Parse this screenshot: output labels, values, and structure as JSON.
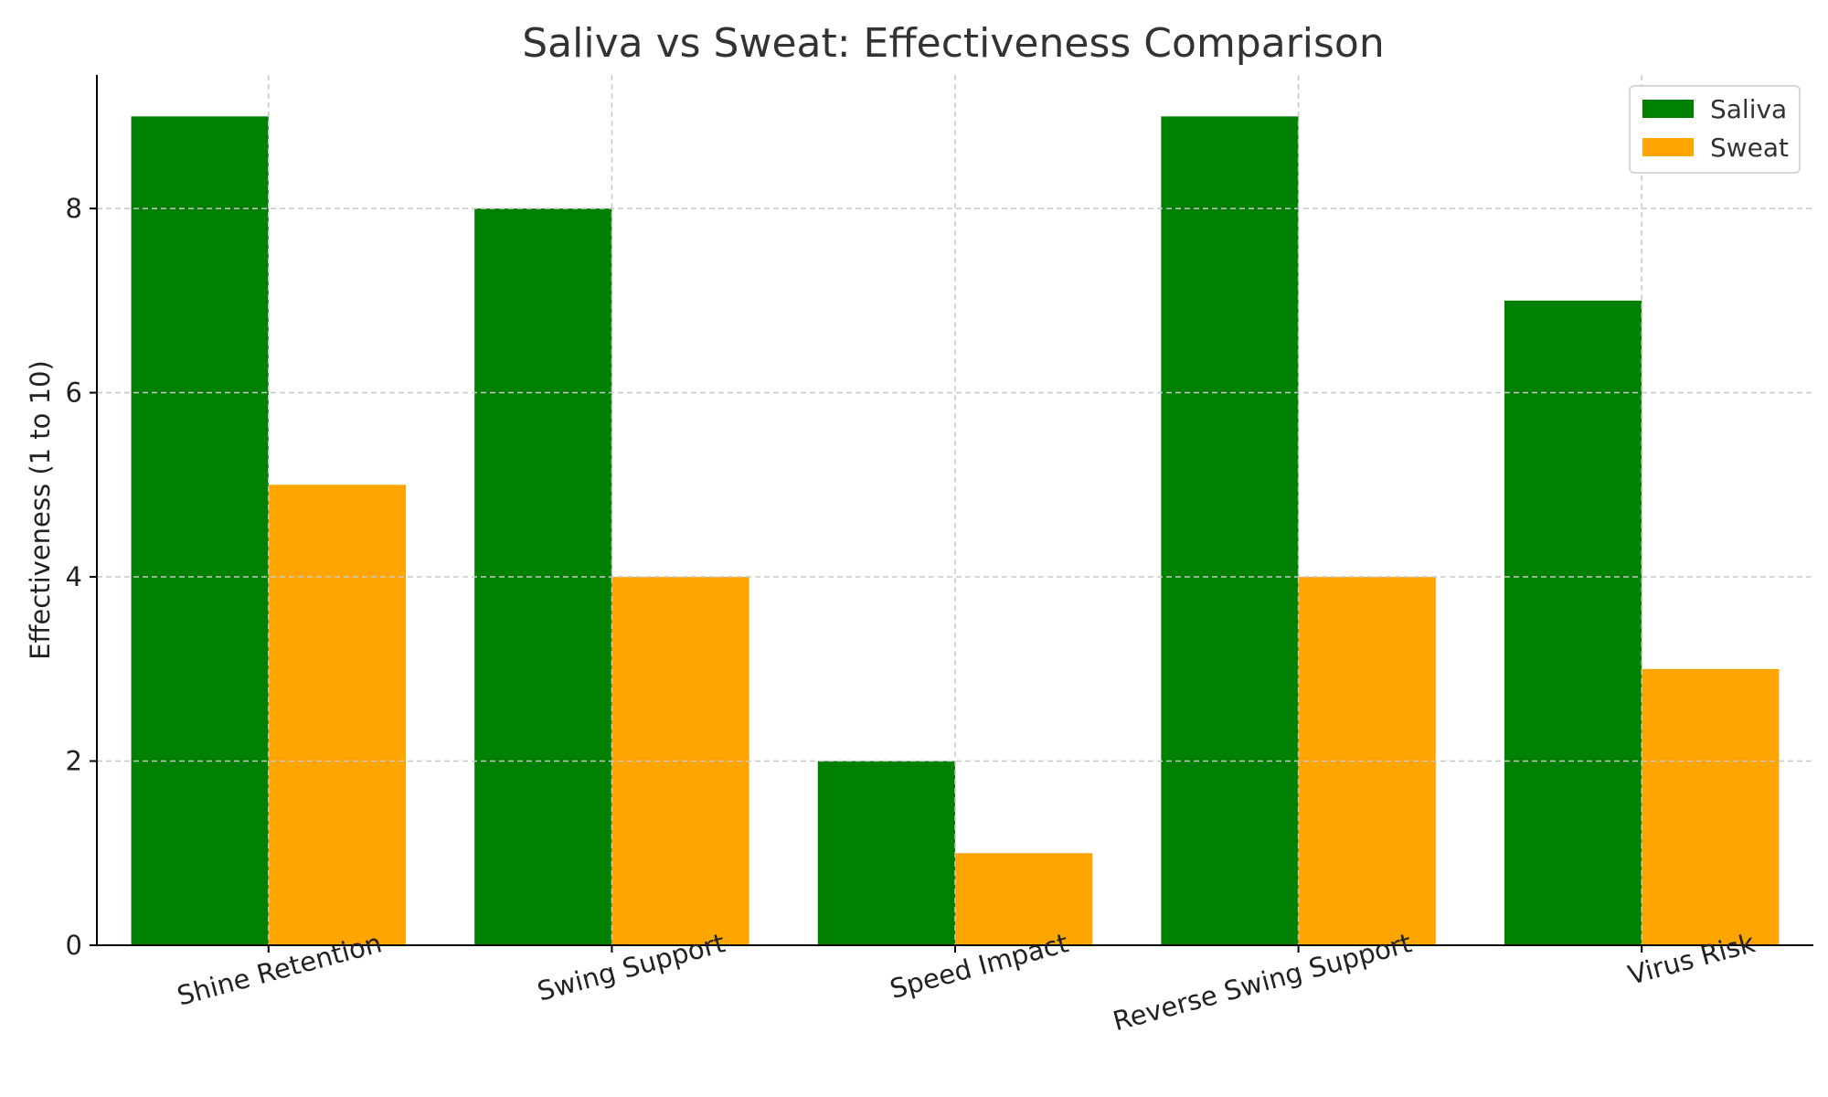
{
  "chart_data": {
    "type": "bar",
    "title": "Saliva vs Sweat: Effectiveness Comparison",
    "xlabel": "",
    "ylabel": "Effectiveness (1 to 10)",
    "categories": [
      "Shine Retention",
      "Swing Support",
      "Speed Impact",
      "Reverse Swing Support",
      "Virus Risk"
    ],
    "series": [
      {
        "name": "Saliva",
        "color": "#008000",
        "values": [
          9,
          8,
          2,
          9,
          7
        ]
      },
      {
        "name": "Sweat",
        "color": "#FFA500",
        "values": [
          5,
          4,
          1,
          4,
          3
        ]
      }
    ],
    "ylim": [
      0,
      9.45
    ],
    "yticks": [
      0,
      2,
      4,
      6,
      8
    ],
    "grid": true,
    "legend_position": "top-right"
  }
}
